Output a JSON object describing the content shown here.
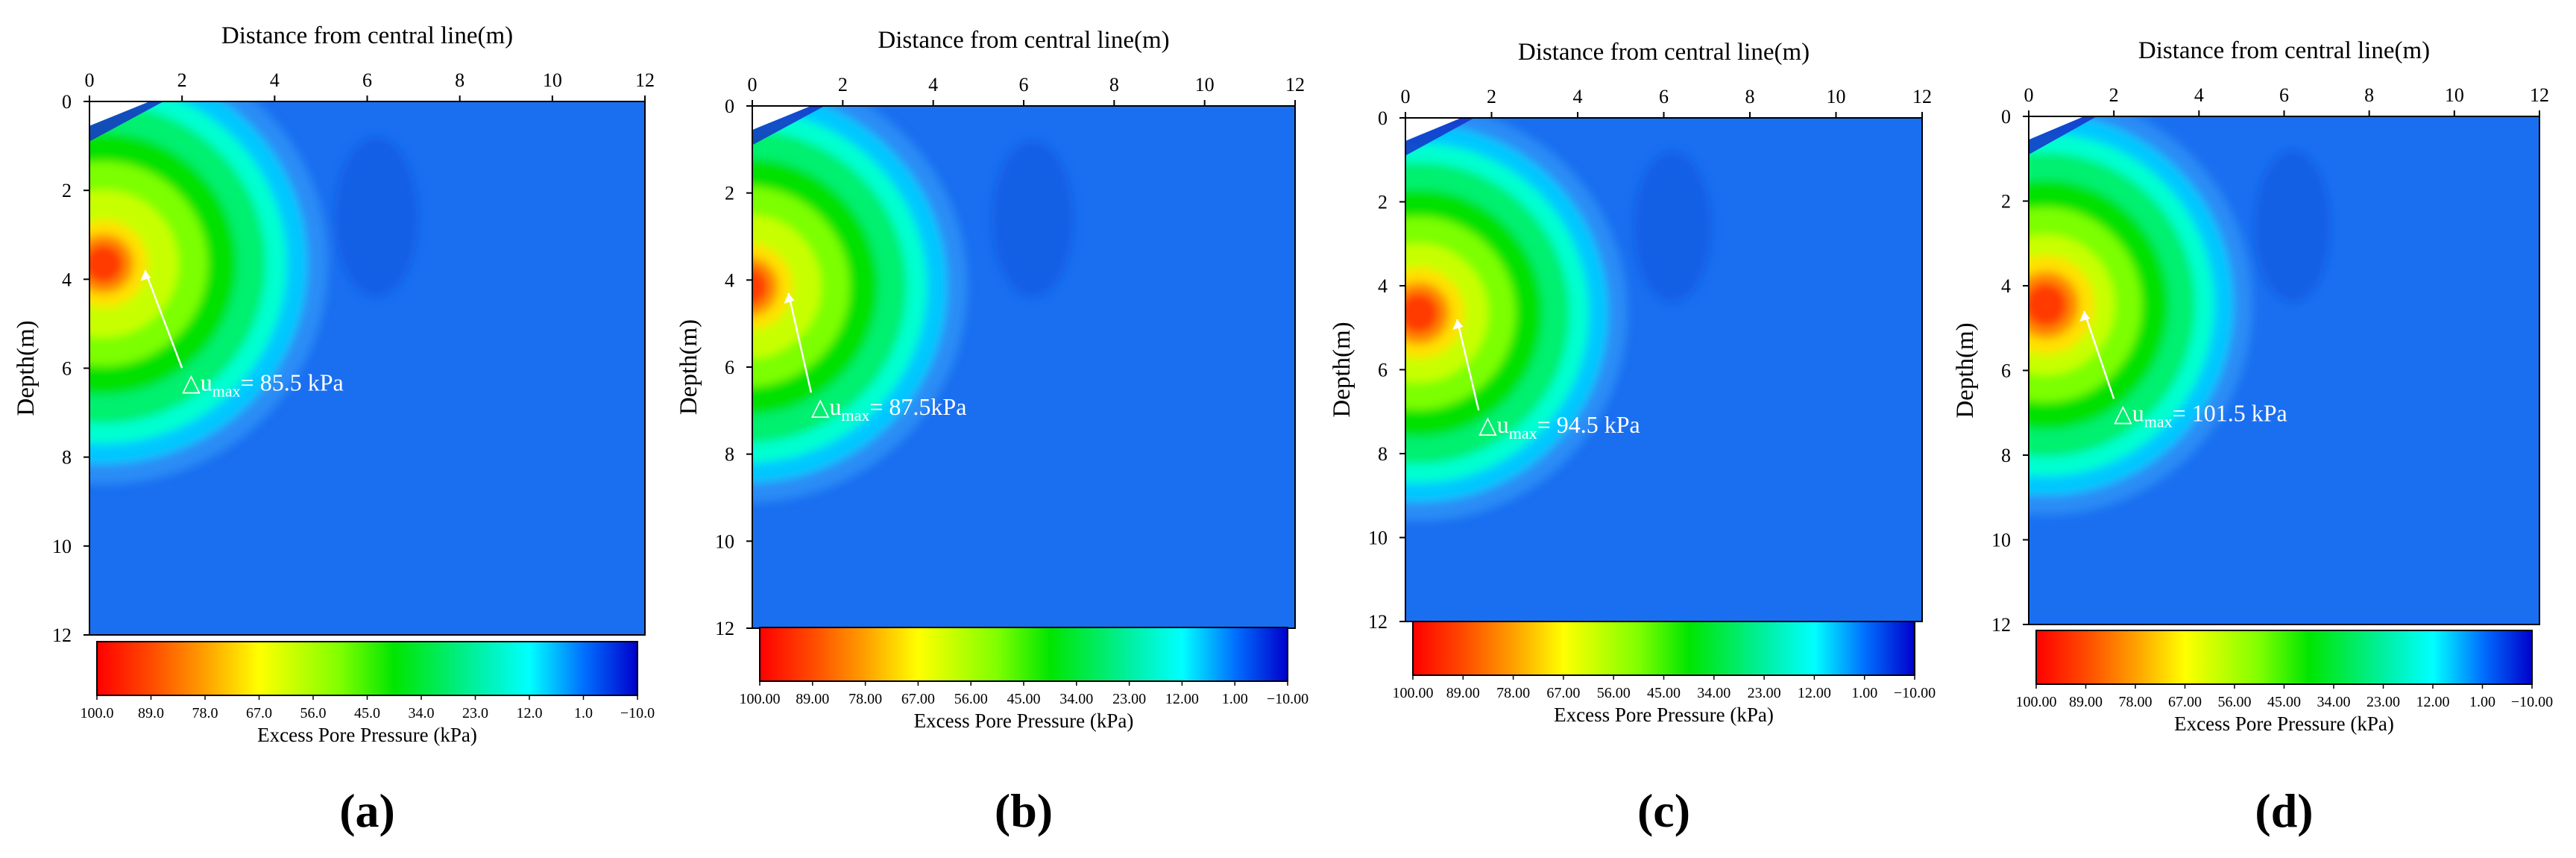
{
  "chart_data": [
    {
      "type": "heatmap",
      "panel_label": "(a)",
      "title": "",
      "xlabel": "Distance from central line(m)",
      "ylabel": "Depth(m)",
      "x_ticks": [
        "0",
        "2",
        "4",
        "6",
        "8",
        "10",
        "12"
      ],
      "y_ticks": [
        "0",
        "2",
        "4",
        "6",
        "8",
        "10",
        "12"
      ],
      "xlim": [
        0,
        12
      ],
      "ylim": [
        12,
        0
      ],
      "peak": {
        "x": 1.2,
        "depth": 3.8,
        "value": 85.5
      },
      "annotation": {
        "delta": "△u",
        "sub": "max",
        "text": "= 85.5 kPa",
        "x": 2.0,
        "depth": 6.5
      },
      "colorbar": {
        "label": "Excess Pore Pressure (kPa)",
        "ticks": [
          "100.0",
          "89.0",
          "78.0",
          "67.0",
          "56.0",
          "45.0",
          "34.0",
          "23.0",
          "12.0",
          "1.0",
          "−10.0"
        ],
        "range": [
          100,
          -10
        ]
      }
    },
    {
      "type": "heatmap",
      "panel_label": "(b)",
      "title": "",
      "xlabel": "Distance from central line(m)",
      "ylabel": "Depth(m)",
      "x_ticks": [
        "0",
        "2",
        "4",
        "6",
        "8",
        "10",
        "12"
      ],
      "y_ticks": [
        "0",
        "2",
        "4",
        "6",
        "8",
        "10",
        "12"
      ],
      "xlim": [
        0,
        12
      ],
      "ylim": [
        12,
        0
      ],
      "peak": {
        "x": 0.8,
        "depth": 4.3,
        "value": 87.5
      },
      "annotation": {
        "delta": "△u",
        "sub": "max",
        "text": "= 87.5kPa",
        "x": 1.3,
        "depth": 7.1
      },
      "colorbar": {
        "label": "Excess Pore Pressure (kPa)",
        "ticks": [
          "100.00",
          "89.00",
          "78.00",
          "67.00",
          "56.00",
          "45.00",
          "34.00",
          "23.00",
          "12.00",
          "1.00",
          "−10.00"
        ],
        "range": [
          100,
          -10
        ]
      }
    },
    {
      "type": "heatmap",
      "panel_label": "(c)",
      "title": "",
      "xlabel": "Distance from central line(m)",
      "ylabel": "Depth(m)",
      "x_ticks": [
        "0",
        "2",
        "4",
        "6",
        "8",
        "10",
        "12"
      ],
      "y_ticks": [
        "0",
        "2",
        "4",
        "6",
        "8",
        "10",
        "12"
      ],
      "xlim": [
        0,
        12
      ],
      "ylim": [
        12,
        0
      ],
      "peak": {
        "x": 1.2,
        "depth": 4.8,
        "value": 94.5
      },
      "annotation": {
        "delta": "△u",
        "sub": "max",
        "text": "= 94.5 kPa",
        "x": 1.7,
        "depth": 7.5
      },
      "colorbar": {
        "label": "Excess Pore Pressure (kPa)",
        "ticks": [
          "100.00",
          "89.00",
          "78.00",
          "67.00",
          "56.00",
          "45.00",
          "34.00",
          "23.00",
          "12.00",
          "1.00",
          "−10.00"
        ],
        "range": [
          100,
          -10
        ]
      }
    },
    {
      "type": "heatmap",
      "panel_label": "(d)",
      "title": "",
      "xlabel": "Distance from central line(m)",
      "ylabel": "Depth(m)",
      "x_ticks": [
        "0",
        "2",
        "4",
        "6",
        "8",
        "10",
        "12"
      ],
      "y_ticks": [
        "0",
        "2",
        "4",
        "6",
        "8",
        "10",
        "12"
      ],
      "xlim": [
        0,
        12
      ],
      "ylim": [
        12,
        0
      ],
      "peak": {
        "x": 1.3,
        "depth": 4.6,
        "value": 101.5
      },
      "annotation": {
        "delta": "△u",
        "sub": "max",
        "text": "= 101.5 kPa",
        "x": 2.0,
        "depth": 7.2
      },
      "colorbar": {
        "label": "Excess Pore Pressure (kPa)",
        "ticks": [
          "100.00",
          "89.00",
          "78.00",
          "67.00",
          "56.00",
          "45.00",
          "34.00",
          "23.00",
          "12.00",
          "1.00",
          "−10.00"
        ],
        "range": [
          100,
          -10
        ]
      }
    }
  ]
}
